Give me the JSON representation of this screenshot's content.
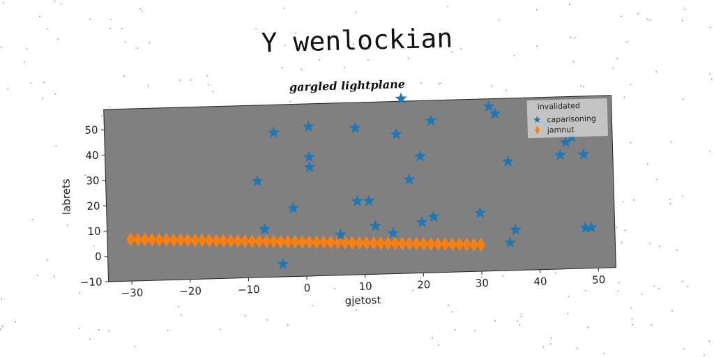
{
  "figure": {
    "suptitle": "Y wenlockian"
  },
  "chart_data": {
    "type": "scatter",
    "title": "gargled lightplane",
    "xlabel": "gjetost",
    "ylabel": "labrets",
    "xlim": [
      -34,
      53
    ],
    "ylim": [
      -10,
      58
    ],
    "xticks": [
      -30,
      -20,
      -10,
      0,
      10,
      20,
      30,
      40,
      50
    ],
    "yticks": [
      -10,
      0,
      10,
      20,
      30,
      40,
      50
    ],
    "grid": false,
    "plot_background": "#808080",
    "legend": {
      "title": "invalidated",
      "placement": "top-right"
    },
    "series": [
      {
        "name": "caparisoning",
        "marker": "star",
        "color": "#1f77b4",
        "points": [
          [
            -8,
            28
          ],
          [
            -7,
            9
          ],
          [
            -5,
            47
          ],
          [
            -4,
            -5
          ],
          [
            -2,
            17
          ],
          [
            1,
            49
          ],
          [
            1,
            37
          ],
          [
            1,
            33
          ],
          [
            6,
            6
          ],
          [
            9,
            19
          ],
          [
            9,
            48
          ],
          [
            11,
            19
          ],
          [
            12,
            9
          ],
          [
            15,
            6
          ],
          [
            16,
            45
          ],
          [
            17,
            59
          ],
          [
            18,
            27
          ],
          [
            20,
            10
          ],
          [
            20,
            36
          ],
          [
            22,
            12
          ],
          [
            22,
            50
          ],
          [
            30,
            13
          ],
          [
            32,
            55
          ],
          [
            33,
            52
          ],
          [
            35,
            1
          ],
          [
            35,
            33
          ],
          [
            36,
            6
          ],
          [
            42,
            47
          ],
          [
            44,
            35
          ],
          [
            45,
            40
          ],
          [
            46,
            42
          ],
          [
            48,
            6
          ],
          [
            48,
            35
          ],
          [
            49,
            6
          ]
        ]
      },
      {
        "name": "jamnut",
        "marker": "thin_diamond",
        "color": "#ff7f0e",
        "x_start": -30,
        "x_end": 30,
        "y_start": 6.5,
        "y_end": 0.5,
        "count": 50
      }
    ]
  }
}
